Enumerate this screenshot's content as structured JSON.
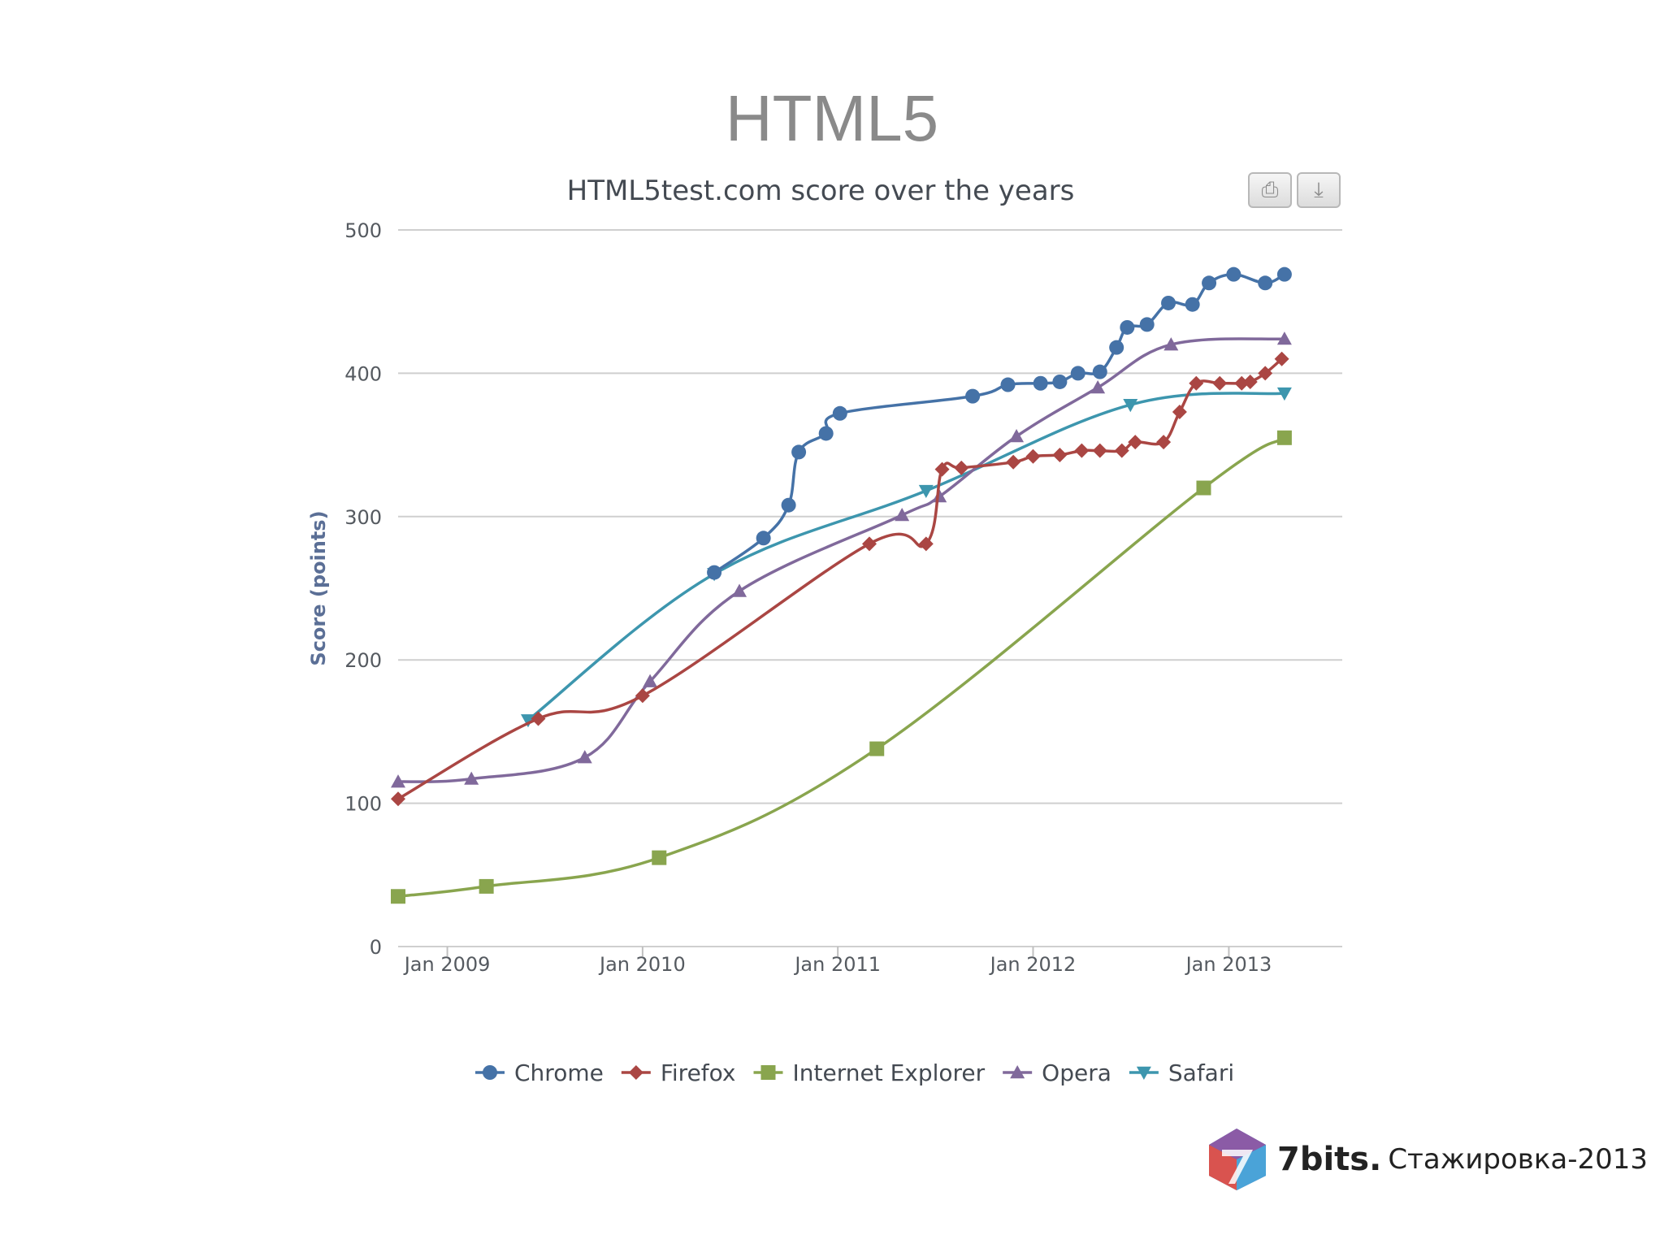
{
  "slide": {
    "title": "HTML5"
  },
  "toolbar": {
    "print_icon": "printer-icon",
    "export_icon": "download-icon"
  },
  "chart_data": {
    "type": "line",
    "title": "HTML5test.com score over the years",
    "ylabel": "Score (points)",
    "xlabel": "",
    "ylim": [
      0,
      500
    ],
    "xlim": [
      "2008-10-01",
      "2013-08-01"
    ],
    "yticks": [
      0,
      100,
      200,
      300,
      400,
      500
    ],
    "xticks": [
      {
        "date": "2009-01-01",
        "label": "Jan 2009"
      },
      {
        "date": "2010-01-01",
        "label": "Jan 2010"
      },
      {
        "date": "2011-01-01",
        "label": "Jan 2011"
      },
      {
        "date": "2012-01-01",
        "label": "Jan 2012"
      },
      {
        "date": "2013-01-01",
        "label": "Jan 2013"
      }
    ],
    "grid": true,
    "legend_position": "bottom",
    "series": [
      {
        "name": "Chrome",
        "color": "#4572a7",
        "marker": "circle",
        "points": [
          [
            "2010-05-15",
            261
          ],
          [
            "2010-08-15",
            285
          ],
          [
            "2010-10-01",
            308
          ],
          [
            "2010-10-20",
            345
          ],
          [
            "2010-12-10",
            358
          ],
          [
            "2011-01-05",
            372
          ],
          [
            "2011-09-10",
            384
          ],
          [
            "2011-11-15",
            392
          ],
          [
            "2012-01-15",
            393
          ],
          [
            "2012-02-20",
            394
          ],
          [
            "2012-03-25",
            400
          ],
          [
            "2012-05-05",
            401
          ],
          [
            "2012-06-05",
            418
          ],
          [
            "2012-06-25",
            432
          ],
          [
            "2012-08-01",
            434
          ],
          [
            "2012-09-10",
            449
          ],
          [
            "2012-10-25",
            448
          ],
          [
            "2012-11-25",
            463
          ],
          [
            "2013-01-10",
            469
          ],
          [
            "2013-03-10",
            463
          ],
          [
            "2013-04-15",
            469
          ]
        ]
      },
      {
        "name": "Firefox",
        "color": "#aa4643",
        "marker": "diamond",
        "points": [
          [
            "2008-10-01",
            103
          ],
          [
            "2009-06-20",
            159
          ],
          [
            "2010-01-01",
            175
          ],
          [
            "2011-03-01",
            281
          ],
          [
            "2011-06-15",
            281
          ],
          [
            "2011-07-15",
            333
          ],
          [
            "2011-08-20",
            334
          ],
          [
            "2011-11-25",
            338
          ],
          [
            "2012-01-01",
            342
          ],
          [
            "2012-02-20",
            343
          ],
          [
            "2012-04-01",
            346
          ],
          [
            "2012-05-05",
            346
          ],
          [
            "2012-06-15",
            346
          ],
          [
            "2012-07-10",
            352
          ],
          [
            "2012-09-01",
            352
          ],
          [
            "2012-10-01",
            373
          ],
          [
            "2012-11-01",
            393
          ],
          [
            "2012-12-15",
            393
          ],
          [
            "2013-01-25",
            393
          ],
          [
            "2013-02-10",
            394
          ],
          [
            "2013-03-10",
            400
          ],
          [
            "2013-04-10",
            410
          ]
        ]
      },
      {
        "name": "Internet Explorer",
        "color": "#89a54e",
        "marker": "square",
        "points": [
          [
            "2008-10-01",
            35
          ],
          [
            "2009-03-15",
            42
          ],
          [
            "2010-02-01",
            62
          ],
          [
            "2011-03-15",
            138
          ],
          [
            "2012-11-15",
            320
          ],
          [
            "2013-04-15",
            355
          ]
        ]
      },
      {
        "name": "Opera",
        "color": "#80699b",
        "marker": "triangle",
        "points": [
          [
            "2008-10-01",
            115
          ],
          [
            "2009-02-15",
            117
          ],
          [
            "2009-09-15",
            132
          ],
          [
            "2010-01-15",
            185
          ],
          [
            "2010-07-01",
            248
          ],
          [
            "2011-05-01",
            301
          ],
          [
            "2011-07-10",
            314
          ],
          [
            "2011-12-01",
            356
          ],
          [
            "2012-05-01",
            390
          ],
          [
            "2012-09-15",
            420
          ],
          [
            "2013-04-15",
            424
          ]
        ]
      },
      {
        "name": "Safari",
        "color": "#3d96ae",
        "marker": "triangle-down",
        "points": [
          [
            "2009-06-01",
            158
          ],
          [
            "2010-05-15",
            260
          ],
          [
            "2011-06-15",
            318
          ],
          [
            "2012-07-01",
            378
          ],
          [
            "2013-04-15",
            386
          ]
        ]
      }
    ]
  },
  "brand": {
    "name": "7bits.",
    "subtitle": "Стажировка-2013",
    "logo_icon": "7bits-logo-icon"
  }
}
